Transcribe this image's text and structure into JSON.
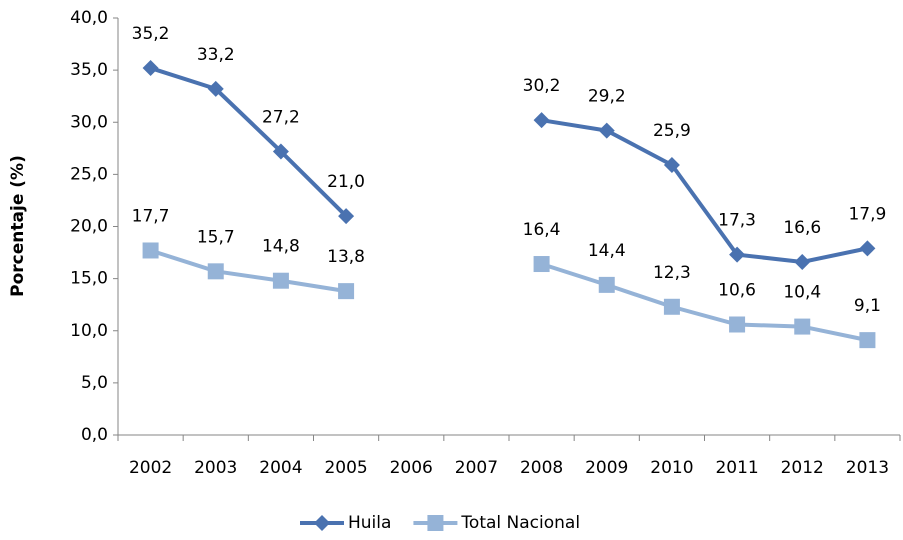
{
  "chart_data": {
    "type": "line",
    "y_label": "Porcentaje (%)",
    "categories": [
      "2002",
      "2003",
      "2004",
      "2005",
      "2006",
      "2007",
      "2008",
      "2009",
      "2010",
      "2011",
      "2012",
      "2013"
    ],
    "series": [
      {
        "name": "Huila",
        "color": "#4a72b0",
        "marker": "diamond",
        "values": [
          35.2,
          33.2,
          27.2,
          21.0,
          null,
          null,
          30.2,
          29.2,
          25.9,
          17.3,
          16.6,
          17.9
        ],
        "value_labels": [
          "35,2",
          "33,2",
          "27,2",
          "21,0",
          null,
          null,
          "30,2",
          "29,2",
          "25,9",
          "17,3",
          "16,6",
          "17,9"
        ]
      },
      {
        "name": "Total Nacional",
        "color": "#95b3d7",
        "marker": "square",
        "values": [
          17.7,
          15.7,
          14.8,
          13.8,
          null,
          null,
          16.4,
          14.4,
          12.3,
          10.6,
          10.4,
          9.1
        ],
        "value_labels": [
          "17,7",
          "15,7",
          "14,8",
          "13,8",
          null,
          null,
          "16,4",
          "14,4",
          "12,3",
          "10,6",
          "10,4",
          "9,1"
        ]
      }
    ],
    "ylim": [
      0,
      40
    ],
    "yticks": [
      {
        "value": 0,
        "label": "0,0"
      },
      {
        "value": 5,
        "label": "5,0"
      },
      {
        "value": 10,
        "label": "10,0"
      },
      {
        "value": 15,
        "label": "15,0"
      },
      {
        "value": 20,
        "label": "20,0"
      },
      {
        "value": 25,
        "label": "25,0"
      },
      {
        "value": 30,
        "label": "30,0"
      },
      {
        "value": 35,
        "label": "35,0"
      },
      {
        "value": 40,
        "label": "40,0"
      }
    ],
    "grid": false,
    "legend": "bottom"
  }
}
